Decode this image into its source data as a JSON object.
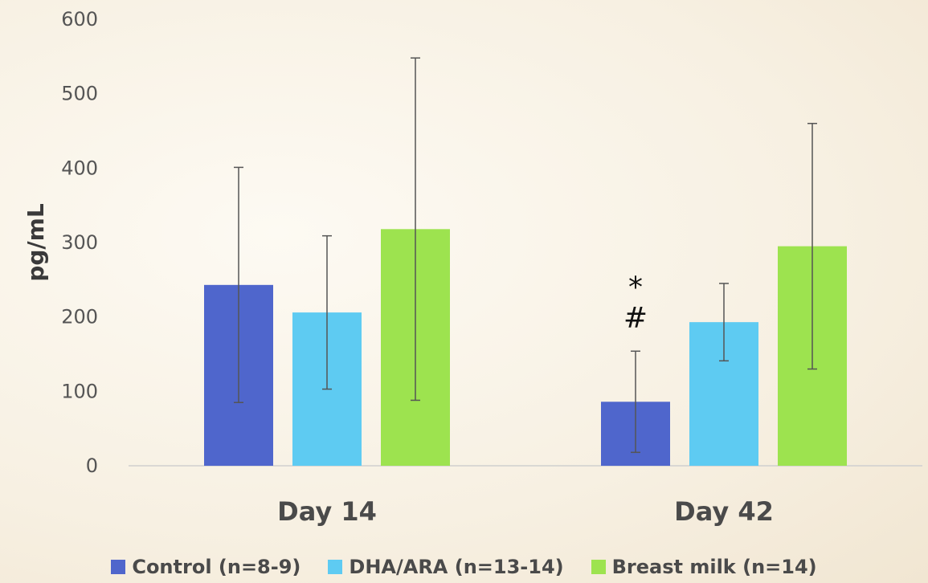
{
  "chart_data": {
    "type": "bar",
    "title": "",
    "xlabel": "",
    "ylabel": "pg/mL",
    "ylim": [
      0,
      600
    ],
    "yticks": [
      0,
      100,
      200,
      300,
      400,
      500,
      600
    ],
    "categories": [
      "Day 14",
      "Day 42"
    ],
    "series": [
      {
        "name": "Control (n=8-9)",
        "color": "#4f66cc",
        "values": [
          243,
          86
        ],
        "errors": [
          158,
          68
        ]
      },
      {
        "name": "DHA/ARA (n=13-14)",
        "color": "#5ecbf2",
        "values": [
          206,
          193
        ],
        "errors": [
          103,
          52
        ]
      },
      {
        "name": "Breast milk (n=14)",
        "color": "#9de34f",
        "values": [
          318,
          295
        ],
        "errors": [
          230,
          165
        ]
      }
    ],
    "annotations": [
      {
        "category": "Day 42",
        "series": "Control (n=8-9)",
        "lines": [
          "*",
          "#"
        ]
      }
    ],
    "grid": false,
    "legend_position": "bottom"
  }
}
